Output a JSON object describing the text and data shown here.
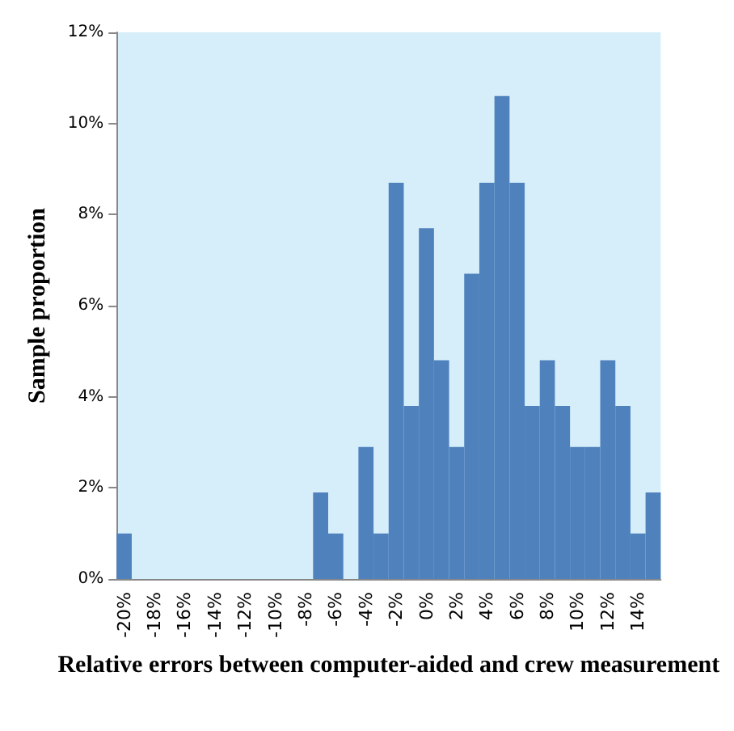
{
  "chart_data": {
    "type": "bar",
    "xlabel": "Relative errors between computer-aided and crew measurement",
    "ylabel": "Sample proportion",
    "categories": [
      "-20%",
      null,
      "-18%",
      null,
      "-16%",
      null,
      "-14%",
      null,
      "-12%",
      null,
      "-10%",
      null,
      "-8%",
      null,
      "-6%",
      null,
      "-4%",
      null,
      "-2%",
      null,
      "0%",
      null,
      "2%",
      null,
      "4%",
      null,
      "6%",
      null,
      "8%",
      null,
      "10%",
      null,
      "12%",
      null,
      "14%",
      null
    ],
    "values": [
      1.0,
      0,
      0,
      0,
      0,
      0,
      0,
      0,
      0,
      0,
      0,
      0,
      0,
      1.9,
      1.0,
      0,
      2.9,
      1.0,
      8.7,
      3.8,
      7.7,
      4.8,
      2.9,
      6.7,
      8.7,
      10.6,
      8.7,
      3.8,
      4.8,
      3.8,
      2.9,
      2.9,
      4.8,
      3.8,
      1.0,
      1.9
    ],
    "color": "#4f81bd",
    "ylim": [
      0,
      12
    ],
    "yticks": [
      {
        "value": 0,
        "label": "0%"
      },
      {
        "value": 2,
        "label": "2%"
      },
      {
        "value": 4,
        "label": "4%"
      },
      {
        "value": 6,
        "label": "6%"
      },
      {
        "value": 8,
        "label": "8%"
      },
      {
        "value": 10,
        "label": "10%"
      },
      {
        "value": 12,
        "label": "12%"
      }
    ],
    "grid": false
  }
}
